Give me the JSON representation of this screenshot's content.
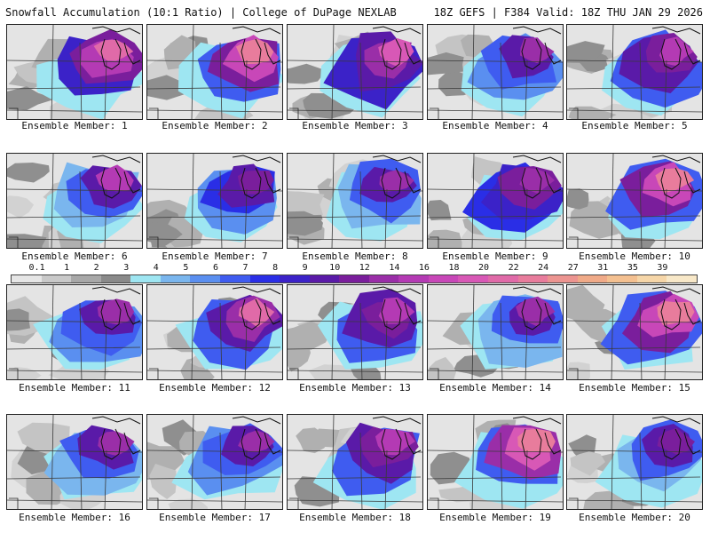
{
  "header": {
    "title": "Snowfall Accumulation (10:1 Ratio) | College of DuPage NEXLAB",
    "run_info": "18Z GEFS | F384 Valid: 18Z THU JAN 29 2026"
  },
  "legend": {
    "labels": [
      "0.1",
      "1",
      "2",
      "3",
      "4",
      "5",
      "6",
      "7",
      "8",
      "9",
      "10",
      "12",
      "14",
      "16",
      "18",
      "20",
      "22",
      "24",
      "27",
      "31",
      "35",
      "39"
    ],
    "colors": [
      "#e6e6e6",
      "#c9c9c9",
      "#a8a8a8",
      "#8a8a8a",
      "#9ee6f2",
      "#7ab6ee",
      "#5a8ff0",
      "#3f5cf0",
      "#2a2ee6",
      "#3b22c8",
      "#5a1aa8",
      "#7a1e9c",
      "#9a2ea8",
      "#b43ab4",
      "#c847b8",
      "#d858b6",
      "#e06aa8",
      "#e87c9c",
      "#ec9490",
      "#f0aa88",
      "#f4c090",
      "#f6d6a8",
      "#f8e8c8"
    ]
  },
  "members": [
    {
      "label": "Ensemble Member: 1",
      "palette": [
        "#3b22c8",
        "#7a1e9c",
        "#b43ab4",
        "#e06aa8"
      ]
    },
    {
      "label": "Ensemble Member: 2",
      "palette": [
        "#3f5cf0",
        "#7a1e9c",
        "#c847b8",
        "#e87c9c"
      ]
    },
    {
      "label": "Ensemble Member: 3",
      "palette": [
        "#3b22c8",
        "#5a1aa8",
        "#9a2ea8",
        "#d858b6"
      ]
    },
    {
      "label": "Ensemble Member: 4",
      "palette": [
        "#5a8ff0",
        "#3f5cf0",
        "#5a1aa8",
        "#9a2ea8"
      ]
    },
    {
      "label": "Ensemble Member: 5",
      "palette": [
        "#3f5cf0",
        "#5a1aa8",
        "#7a1e9c",
        "#b43ab4"
      ]
    },
    {
      "label": "Ensemble Member: 6",
      "palette": [
        "#7ab6ee",
        "#3f5cf0",
        "#5a1aa8",
        "#b43ab4"
      ]
    },
    {
      "label": "Ensemble Member: 7",
      "palette": [
        "#5a8ff0",
        "#2a2ee6",
        "#5a1aa8",
        "#7a1e9c"
      ]
    },
    {
      "label": "Ensemble Member: 8",
      "palette": [
        "#7ab6ee",
        "#3f5cf0",
        "#5a1aa8",
        "#9a2ea8"
      ]
    },
    {
      "label": "Ensemble Member: 9",
      "palette": [
        "#2a2ee6",
        "#3b22c8",
        "#7a1e9c",
        "#9a2ea8"
      ]
    },
    {
      "label": "Ensemble Member: 10",
      "palette": [
        "#3f5cf0",
        "#7a1e9c",
        "#c847b8",
        "#e87c9c"
      ]
    },
    {
      "label": "Ensemble Member: 11",
      "palette": [
        "#5a8ff0",
        "#3f5cf0",
        "#5a1aa8",
        "#9a2ea8"
      ]
    },
    {
      "label": "Ensemble Member: 12",
      "palette": [
        "#3f5cf0",
        "#5a1aa8",
        "#9a2ea8",
        "#e06aa8"
      ]
    },
    {
      "label": "Ensemble Member: 13",
      "palette": [
        "#3f5cf0",
        "#5a1aa8",
        "#7a1e9c",
        "#b43ab4"
      ]
    },
    {
      "label": "Ensemble Member: 14",
      "palette": [
        "#7ab6ee",
        "#3f5cf0",
        "#5a1aa8",
        "#9a2ea8"
      ]
    },
    {
      "label": "Ensemble Member: 15",
      "palette": [
        "#3f5cf0",
        "#7a1e9c",
        "#c847b8",
        "#e87c9c"
      ]
    },
    {
      "label": "Ensemble Member: 16",
      "palette": [
        "#7ab6ee",
        "#3f5cf0",
        "#5a1aa8",
        "#9a2ea8"
      ]
    },
    {
      "label": "Ensemble Member: 17",
      "palette": [
        "#5a8ff0",
        "#3f5cf0",
        "#5a1aa8",
        "#9a2ea8"
      ]
    },
    {
      "label": "Ensemble Member: 18",
      "palette": [
        "#3f5cf0",
        "#5a1aa8",
        "#7a1e9c",
        "#b43ab4"
      ]
    },
    {
      "label": "Ensemble Member: 19",
      "palette": [
        "#3f5cf0",
        "#9a2ea8",
        "#d858b6",
        "#e87c9c"
      ]
    },
    {
      "label": "Ensemble Member: 20",
      "palette": [
        "#7ab6ee",
        "#3f5cf0",
        "#5a1aa8",
        "#7a1e9c"
      ]
    }
  ]
}
